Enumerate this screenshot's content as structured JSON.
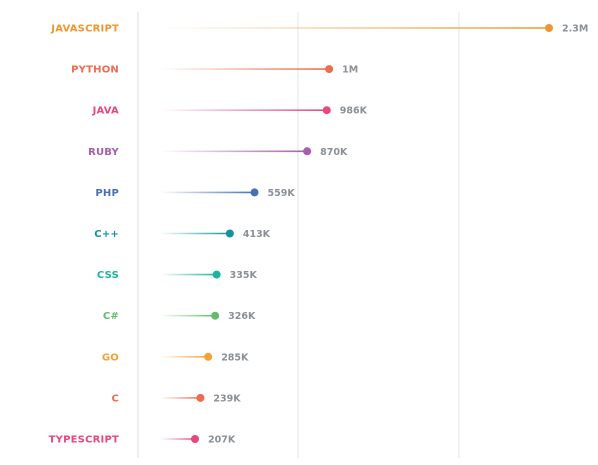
{
  "chart_data": {
    "type": "lollipop",
    "orientation": "horizontal",
    "categories": [
      "JAVASCRIPT",
      "PYTHON",
      "JAVA",
      "RUBY",
      "PHP",
      "C++",
      "CSS",
      "C#",
      "GO",
      "C",
      "TYPESCRIPT"
    ],
    "values": [
      2300000,
      1000000,
      986000,
      870000,
      559000,
      413000,
      335000,
      326000,
      285000,
      239000,
      207000
    ],
    "value_labels": [
      "2.3M",
      "1M",
      "986K",
      "870K",
      "559K",
      "413K",
      "335K",
      "326K",
      "285K",
      "239K",
      "207K"
    ],
    "colors": [
      "#f0952e",
      "#ef6b4e",
      "#e8477a",
      "#a95bb0",
      "#4a6fb3",
      "#16919f",
      "#1ab59c",
      "#66bb6a",
      "#f7a033",
      "#ef6b4e",
      "#e8477a"
    ],
    "x_axis_value": 1850000,
    "xlim": [
      0,
      2300000
    ],
    "grid": true,
    "title": "",
    "xlabel": "",
    "ylabel": ""
  }
}
